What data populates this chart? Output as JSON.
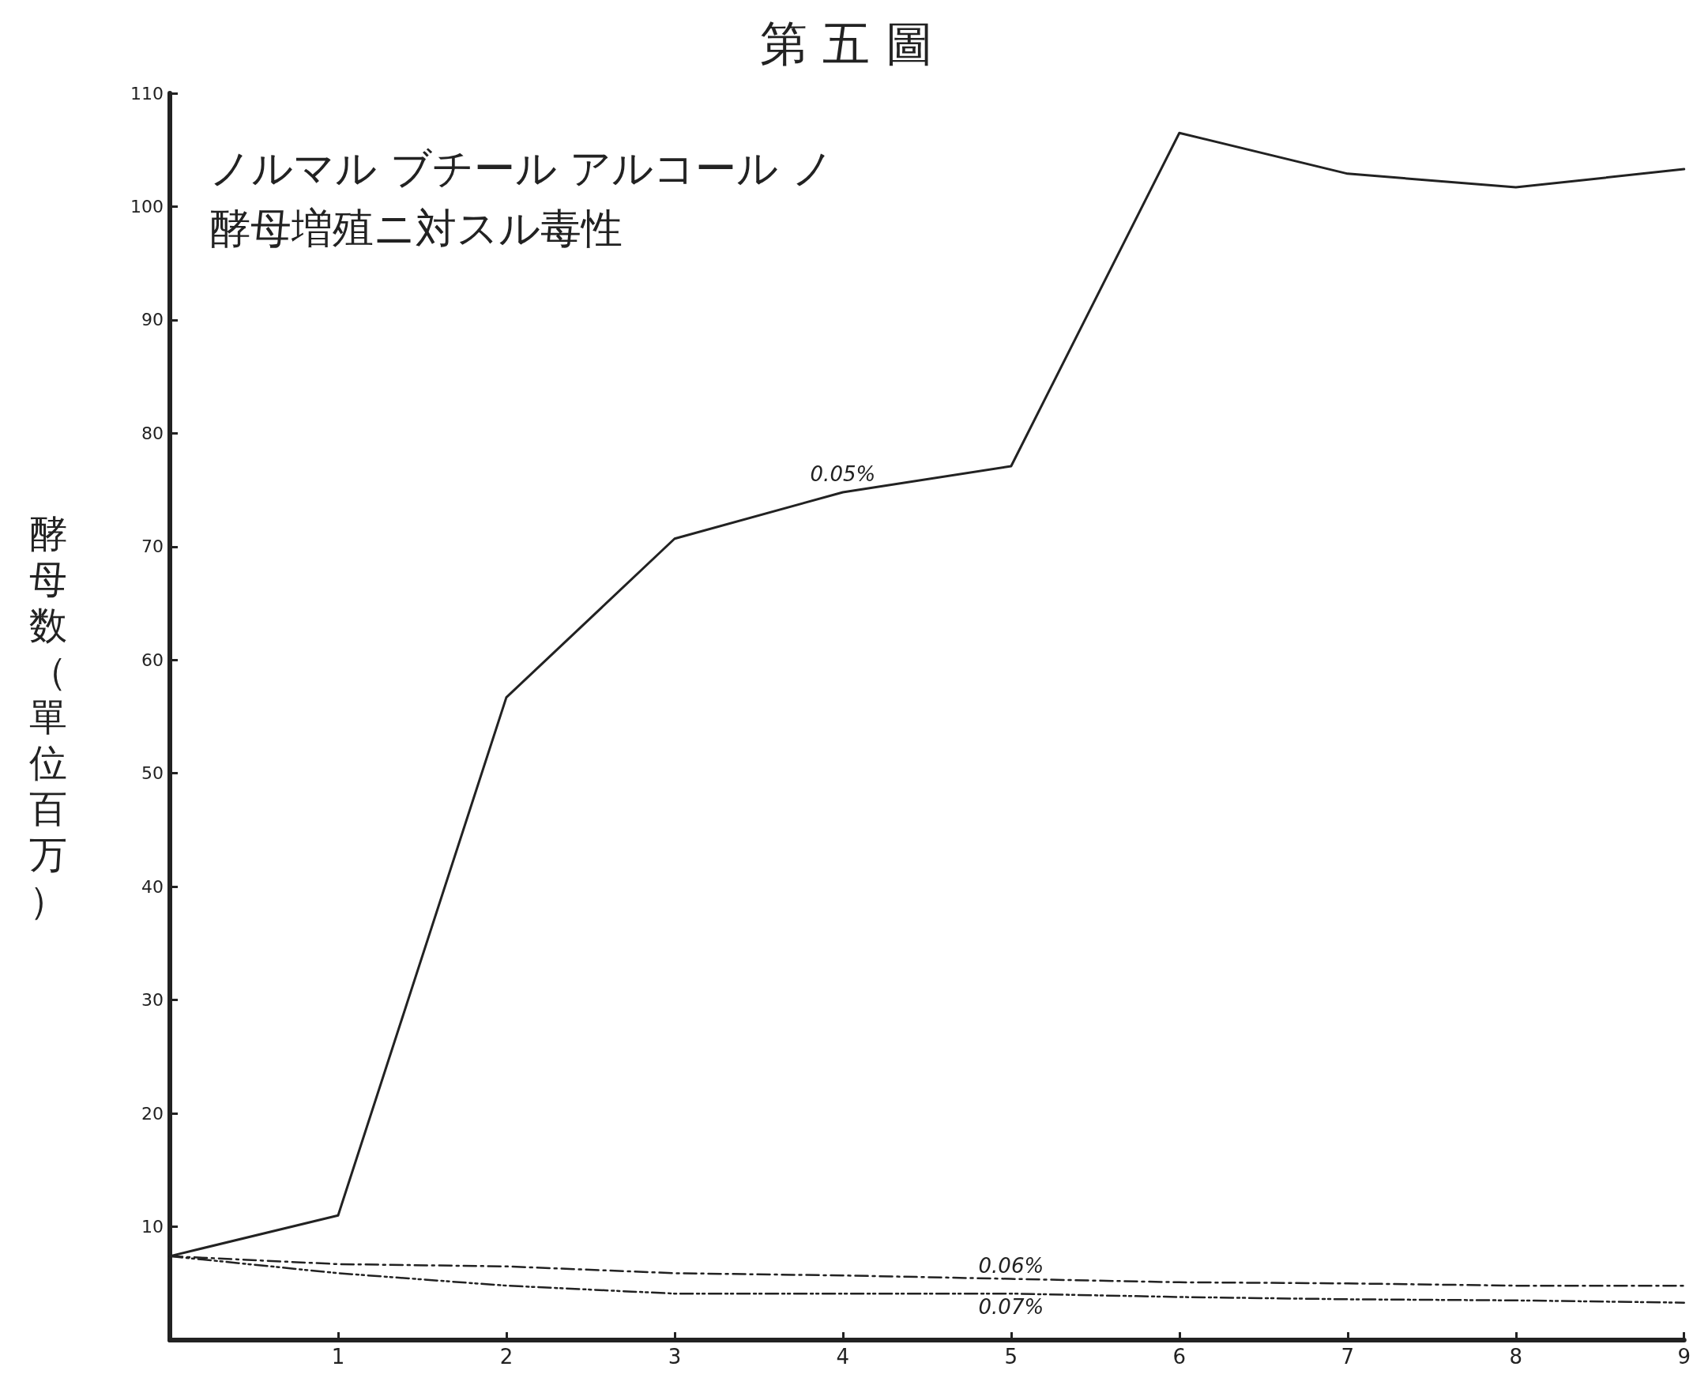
{
  "chart_data": {
    "type": "line",
    "title": "第 五 圖",
    "subtitle": "ノルマル ブチール アルコール ノ酵母増殖ニ対スル毒性",
    "ylabel": "酵母数（單位百万）",
    "x": [
      0,
      1,
      2,
      3,
      4,
      5,
      6,
      7,
      8,
      9
    ],
    "series": [
      {
        "name": "0.05%",
        "color": "#222222",
        "line_style": "solid",
        "values": [
          7.4,
          11,
          56.7,
          70.7,
          74.8,
          77.1,
          106.5,
          102.9,
          101.7,
          103.3
        ]
      },
      {
        "name": "0.06%",
        "color": "#222222",
        "line_style": "dashed",
        "values": [
          7.4,
          6.7,
          6.5,
          5.9,
          5.7,
          5.4,
          5.1,
          5,
          4.8,
          4.8
        ]
      },
      {
        "name": "0.07%",
        "color": "#222222",
        "line_style": "dotted",
        "values": [
          7.4,
          5.9,
          4.8,
          4.1,
          4.1,
          4.1,
          3.8,
          3.6,
          3.5,
          3.3
        ]
      }
    ],
    "xlim": [
      0,
      9
    ],
    "xticks": [
      1,
      2,
      3,
      4,
      5,
      6,
      7,
      8,
      9
    ],
    "ylim": [
      0,
      110
    ],
    "yticks": [
      10,
      20,
      30,
      40,
      50,
      60,
      70,
      80,
      90,
      100,
      110
    ],
    "grid": false,
    "legend": false,
    "marker": "none"
  }
}
